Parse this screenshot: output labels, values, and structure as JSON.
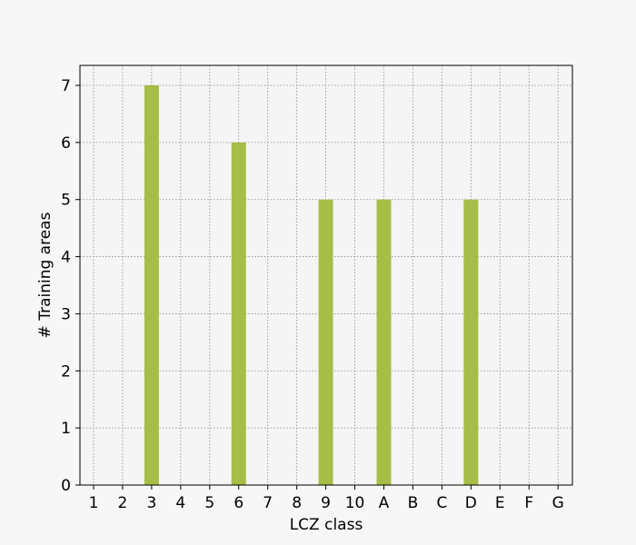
{
  "chart_data": {
    "type": "bar",
    "categories": [
      "1",
      "2",
      "3",
      "4",
      "5",
      "6",
      "7",
      "8",
      "9",
      "10",
      "A",
      "B",
      "C",
      "D",
      "E",
      "F",
      "G"
    ],
    "values": [
      0,
      0,
      7,
      0,
      0,
      6,
      0,
      0,
      5,
      0,
      5,
      0,
      0,
      5,
      0,
      0,
      0
    ],
    "xlabel": "LCZ class",
    "ylabel": "# Training areas",
    "ylim": [
      0,
      7.35
    ],
    "yticks": [
      0,
      1,
      2,
      3,
      4,
      5,
      6,
      7
    ],
    "grid": true,
    "bar_color": "#a6bd48",
    "background": "#f7f7f7",
    "plot_background": "#f5f5f5"
  }
}
